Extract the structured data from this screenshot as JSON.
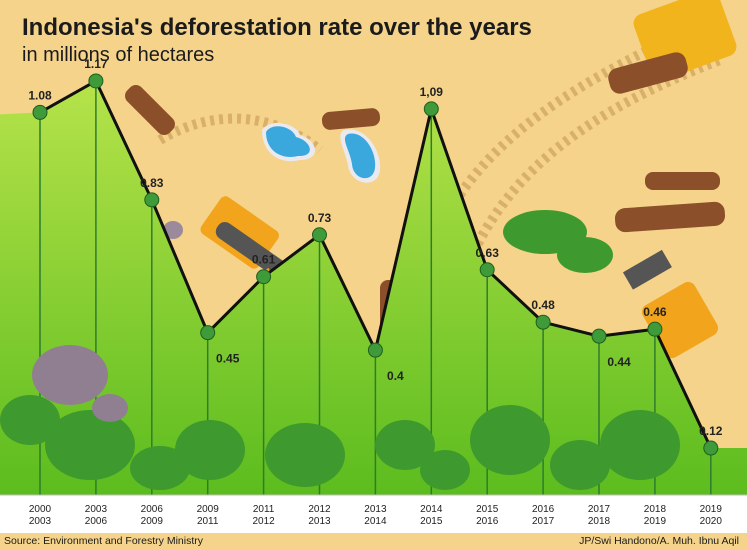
{
  "header": {
    "title": "Indonesia's deforestation rate over the years",
    "subtitle": "in millions of hectares"
  },
  "footer": {
    "source": "Source: Environment and Forestry Ministry",
    "credit": "JP/Swi Handono/A. Muh. Ibnu Aqil"
  },
  "colors": {
    "background": "#f5d38a",
    "area_top": "#b6e34a",
    "area_bottom": "#5cbc1e",
    "line": "#111111",
    "marker": "#3f9a3a",
    "tree": "#3e9a2e",
    "log": "#8b4f2a"
  },
  "chart_data": {
    "type": "line",
    "title": "Indonesia's deforestation rate over the years",
    "subtitle": "in millions of hectares",
    "categories": [
      [
        "2000",
        "2003"
      ],
      [
        "2003",
        "2006"
      ],
      [
        "2006",
        "2009"
      ],
      [
        "2009",
        "2011"
      ],
      [
        "2011",
        "2012"
      ],
      [
        "2012",
        "2013"
      ],
      [
        "2013",
        "2014"
      ],
      [
        "2014",
        "2015"
      ],
      [
        "2015",
        "2016"
      ],
      [
        "2016",
        "2017"
      ],
      [
        "2017",
        "2018"
      ],
      [
        "2018",
        "2019"
      ],
      [
        "2019",
        "2020"
      ]
    ],
    "values": [
      1.08,
      1.17,
      0.83,
      0.45,
      0.61,
      0.73,
      0.4,
      1.09,
      0.63,
      0.48,
      0.44,
      0.46,
      0.12
    ],
    "value_labels": [
      "1.08",
      "1.17",
      "0.83",
      "0.45",
      "0.61",
      "0.73",
      "0.4",
      "1,09",
      "0.63",
      "0.48",
      "0.44",
      "0.46",
      "0.12"
    ],
    "ylim": [
      0,
      1.25
    ],
    "grid": false,
    "legend": "none"
  }
}
